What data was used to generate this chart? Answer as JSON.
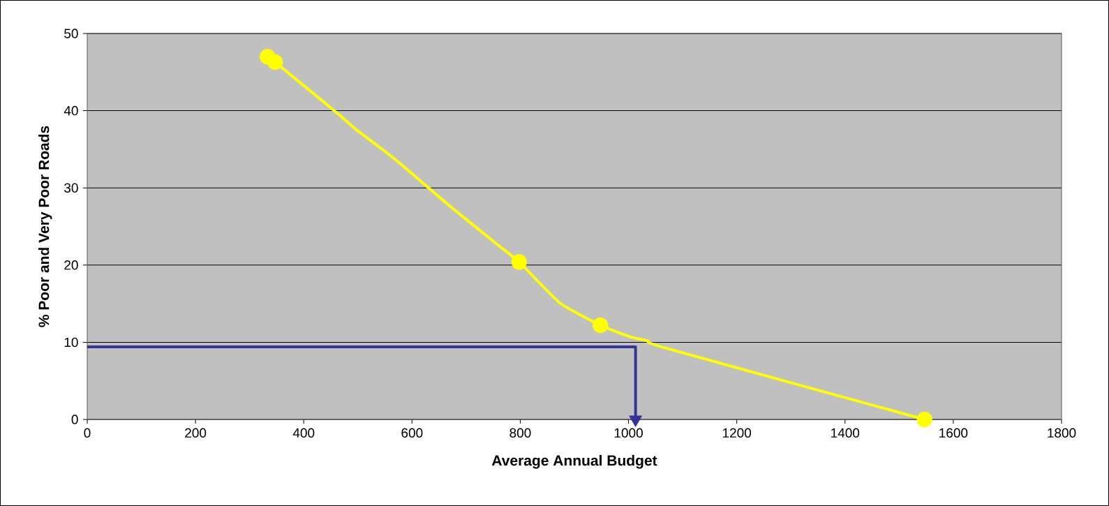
{
  "chart_data": {
    "type": "line",
    "xlabel": "Average Annual Budget",
    "ylabel": "% Poor and Very Poor Roads",
    "xlim": [
      0,
      1800
    ],
    "ylim": [
      0,
      50
    ],
    "xticks": [
      0,
      200,
      400,
      600,
      800,
      1000,
      1200,
      1400,
      1600,
      1800
    ],
    "yticks": [
      0,
      10,
      20,
      30,
      40,
      50
    ],
    "grid": "y",
    "series": [
      {
        "type": "line",
        "color": "#ffff00",
        "marker": "none",
        "x": [
          333,
          347,
          387,
          465,
          496,
          567,
          669,
          757,
          798,
          873,
          948,
          1003,
          1035,
          1066,
          1547
        ],
        "values": [
          47.0,
          46.3,
          44.0,
          39.5,
          37.6,
          33.8,
          27.7,
          22.7,
          20.4,
          15.1,
          12.2,
          10.7,
          10.2,
          9.3,
          0
        ]
      },
      {
        "type": "scatter",
        "color": "#ffff00",
        "marker": "circle",
        "x": [
          333,
          347,
          798,
          948,
          1547
        ],
        "values": [
          47.0,
          46.3,
          20.4,
          12.2,
          0
        ]
      },
      {
        "type": "line",
        "color": "#333399",
        "marker": "none",
        "x": [
          0,
          1013,
          1013
        ],
        "values": [
          9.4,
          9.4,
          0
        ]
      }
    ]
  }
}
